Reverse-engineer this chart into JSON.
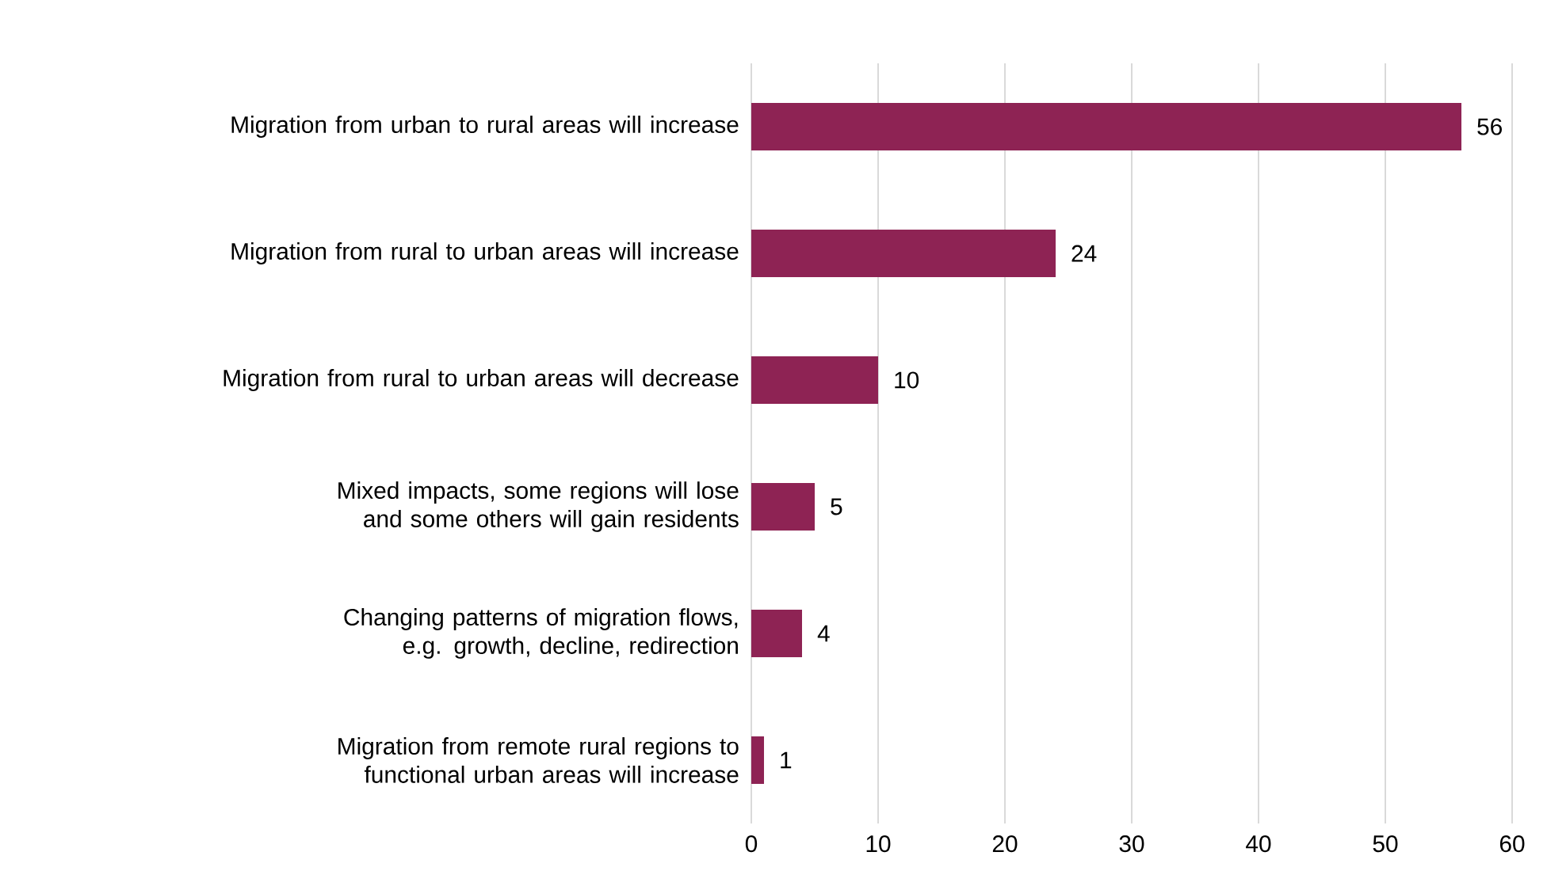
{
  "chart_data": {
    "type": "bar",
    "orientation": "horizontal",
    "categories": [
      "Migration from urban to rural areas will increase",
      "Migration from rural to urban areas will increase",
      "Migration from rural to urban areas will decrease",
      "Mixed impacts, some regions will lose and some others will gain residents",
      "Changing patterns of migration flows, e.g. growth, decline, redirection",
      "Migration from remote rural regions to functional urban areas will increase"
    ],
    "values": [
      56,
      24,
      10,
      5,
      4,
      1
    ],
    "color": "#8e2354",
    "xlim": [
      0,
      60
    ],
    "xticks": [
      0,
      10,
      20,
      30,
      40,
      50,
      60
    ],
    "grid": "x",
    "data_labels": true
  }
}
